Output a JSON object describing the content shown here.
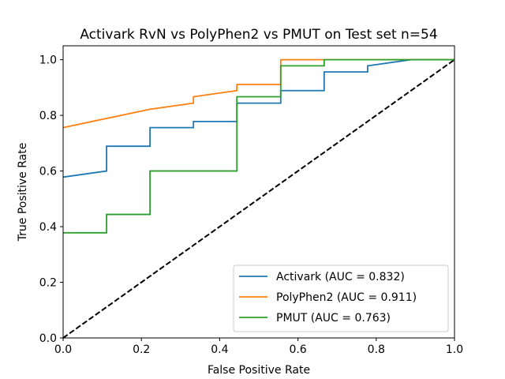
{
  "chart_data": {
    "type": "line",
    "title": "Activark RvN vs PolyPhen2 vs PMUT on Test set n=54",
    "xlabel": "False Positive Rate",
    "ylabel": "True Positive Rate",
    "xlim": [
      0.0,
      1.0
    ],
    "ylim": [
      0.0,
      1.05
    ],
    "xticks": [
      "0.0",
      "0.2",
      "0.4",
      "0.6",
      "0.8",
      "1.0"
    ],
    "yticks": [
      "0.0",
      "0.2",
      "0.4",
      "0.6",
      "0.8",
      "1.0"
    ],
    "grid": false,
    "legend_position": "lower-right",
    "series": [
      {
        "name": "Activark (AUC = 0.832)",
        "color": "#1f77b4",
        "x": [
          0.0,
          0.111,
          0.111,
          0.222,
          0.222,
          0.333,
          0.333,
          0.444,
          0.444,
          0.556,
          0.556,
          0.667,
          0.667,
          0.778,
          0.778,
          0.889,
          1.0
        ],
        "y": [
          0.578,
          0.6,
          0.689,
          0.689,
          0.756,
          0.756,
          0.778,
          0.778,
          0.844,
          0.844,
          0.889,
          0.889,
          0.956,
          0.956,
          0.978,
          1.0,
          1.0
        ]
      },
      {
        "name": "PolyPhen2 (AUC = 0.911)",
        "color": "#ff7f0e",
        "x": [
          0.0,
          0.222,
          0.333,
          0.333,
          0.444,
          0.444,
          0.556,
          0.556,
          1.0
        ],
        "y": [
          0.756,
          0.822,
          0.844,
          0.867,
          0.889,
          0.911,
          0.911,
          1.0,
          1.0
        ]
      },
      {
        "name": "PMUT (AUC = 0.763)",
        "color": "#2ca02c",
        "x": [
          0.0,
          0.111,
          0.111,
          0.222,
          0.222,
          0.444,
          0.444,
          0.556,
          0.556,
          0.667,
          0.667,
          1.0
        ],
        "y": [
          0.378,
          0.378,
          0.444,
          0.444,
          0.6,
          0.6,
          0.867,
          0.867,
          0.978,
          0.978,
          1.0,
          1.0
        ]
      }
    ],
    "reference_line": {
      "x": [
        0.0,
        1.0
      ],
      "y": [
        0.0,
        1.0
      ],
      "color": "#000000",
      "style": "dashed"
    }
  }
}
